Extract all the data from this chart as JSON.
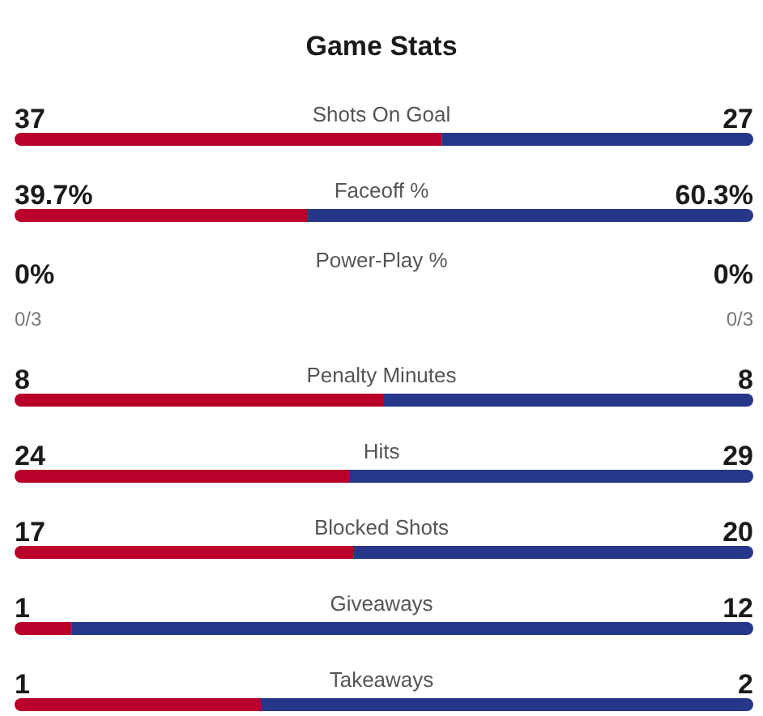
{
  "chart_data": [
    {
      "type": "bar",
      "title": "Game Stats",
      "orientation": "horizontal",
      "stacked": true,
      "categories": [
        "Shots On Goal"
      ],
      "series": [
        {
          "color": "#b8002b",
          "values": [
            37
          ],
          "value_labels": [
            "37"
          ]
        },
        {
          "color": "#26378a",
          "values": [
            27
          ],
          "value_labels": [
            "27"
          ]
        }
      ]
    },
    {
      "type": "bar",
      "orientation": "horizontal",
      "stacked": true,
      "categories": [
        "Faceoff %"
      ],
      "series": [
        {
          "color": "#b8002b",
          "values": [
            39.7
          ],
          "value_labels": [
            "39.7%"
          ]
        },
        {
          "color": "#26378a",
          "values": [
            60.3
          ],
          "value_labels": [
            "60.3%"
          ]
        }
      ]
    },
    {
      "type": "other",
      "categories": [
        "Power-Play %"
      ],
      "annotations": [
        "0%",
        "0%",
        "0/3",
        "0/3"
      ]
    },
    {
      "type": "bar",
      "orientation": "horizontal",
      "stacked": true,
      "categories": [
        "Penalty Minutes"
      ],
      "series": [
        {
          "color": "#b8002b",
          "values": [
            8
          ],
          "value_labels": [
            "8"
          ]
        },
        {
          "color": "#26378a",
          "values": [
            8
          ],
          "value_labels": [
            "8"
          ]
        }
      ]
    },
    {
      "type": "bar",
      "orientation": "horizontal",
      "stacked": true,
      "categories": [
        "Hits"
      ],
      "series": [
        {
          "color": "#b8002b",
          "values": [
            24
          ],
          "value_labels": [
            "24"
          ]
        },
        {
          "color": "#26378a",
          "values": [
            29
          ],
          "value_labels": [
            "29"
          ]
        }
      ]
    },
    {
      "type": "bar",
      "orientation": "horizontal",
      "stacked": true,
      "categories": [
        "Blocked Shots"
      ],
      "series": [
        {
          "color": "#b8002b",
          "values": [
            17
          ],
          "value_labels": [
            "17"
          ]
        },
        {
          "color": "#26378a",
          "values": [
            20
          ],
          "value_labels": [
            "20"
          ]
        }
      ]
    },
    {
      "type": "bar",
      "orientation": "horizontal",
      "stacked": true,
      "categories": [
        "Giveaways"
      ],
      "series": [
        {
          "color": "#b8002b",
          "values": [
            1
          ],
          "value_labels": [
            "1"
          ]
        },
        {
          "color": "#26378a",
          "values": [
            12
          ],
          "value_labels": [
            "12"
          ]
        }
      ]
    },
    {
      "type": "bar",
      "orientation": "horizontal",
      "stacked": true,
      "categories": [
        "Takeaways"
      ],
      "series": [
        {
          "color": "#b8002b",
          "values": [
            1
          ],
          "value_labels": [
            "1"
          ]
        },
        {
          "color": "#26378a",
          "values": [
            2
          ],
          "value_labels": [
            "2"
          ]
        }
      ]
    }
  ]
}
